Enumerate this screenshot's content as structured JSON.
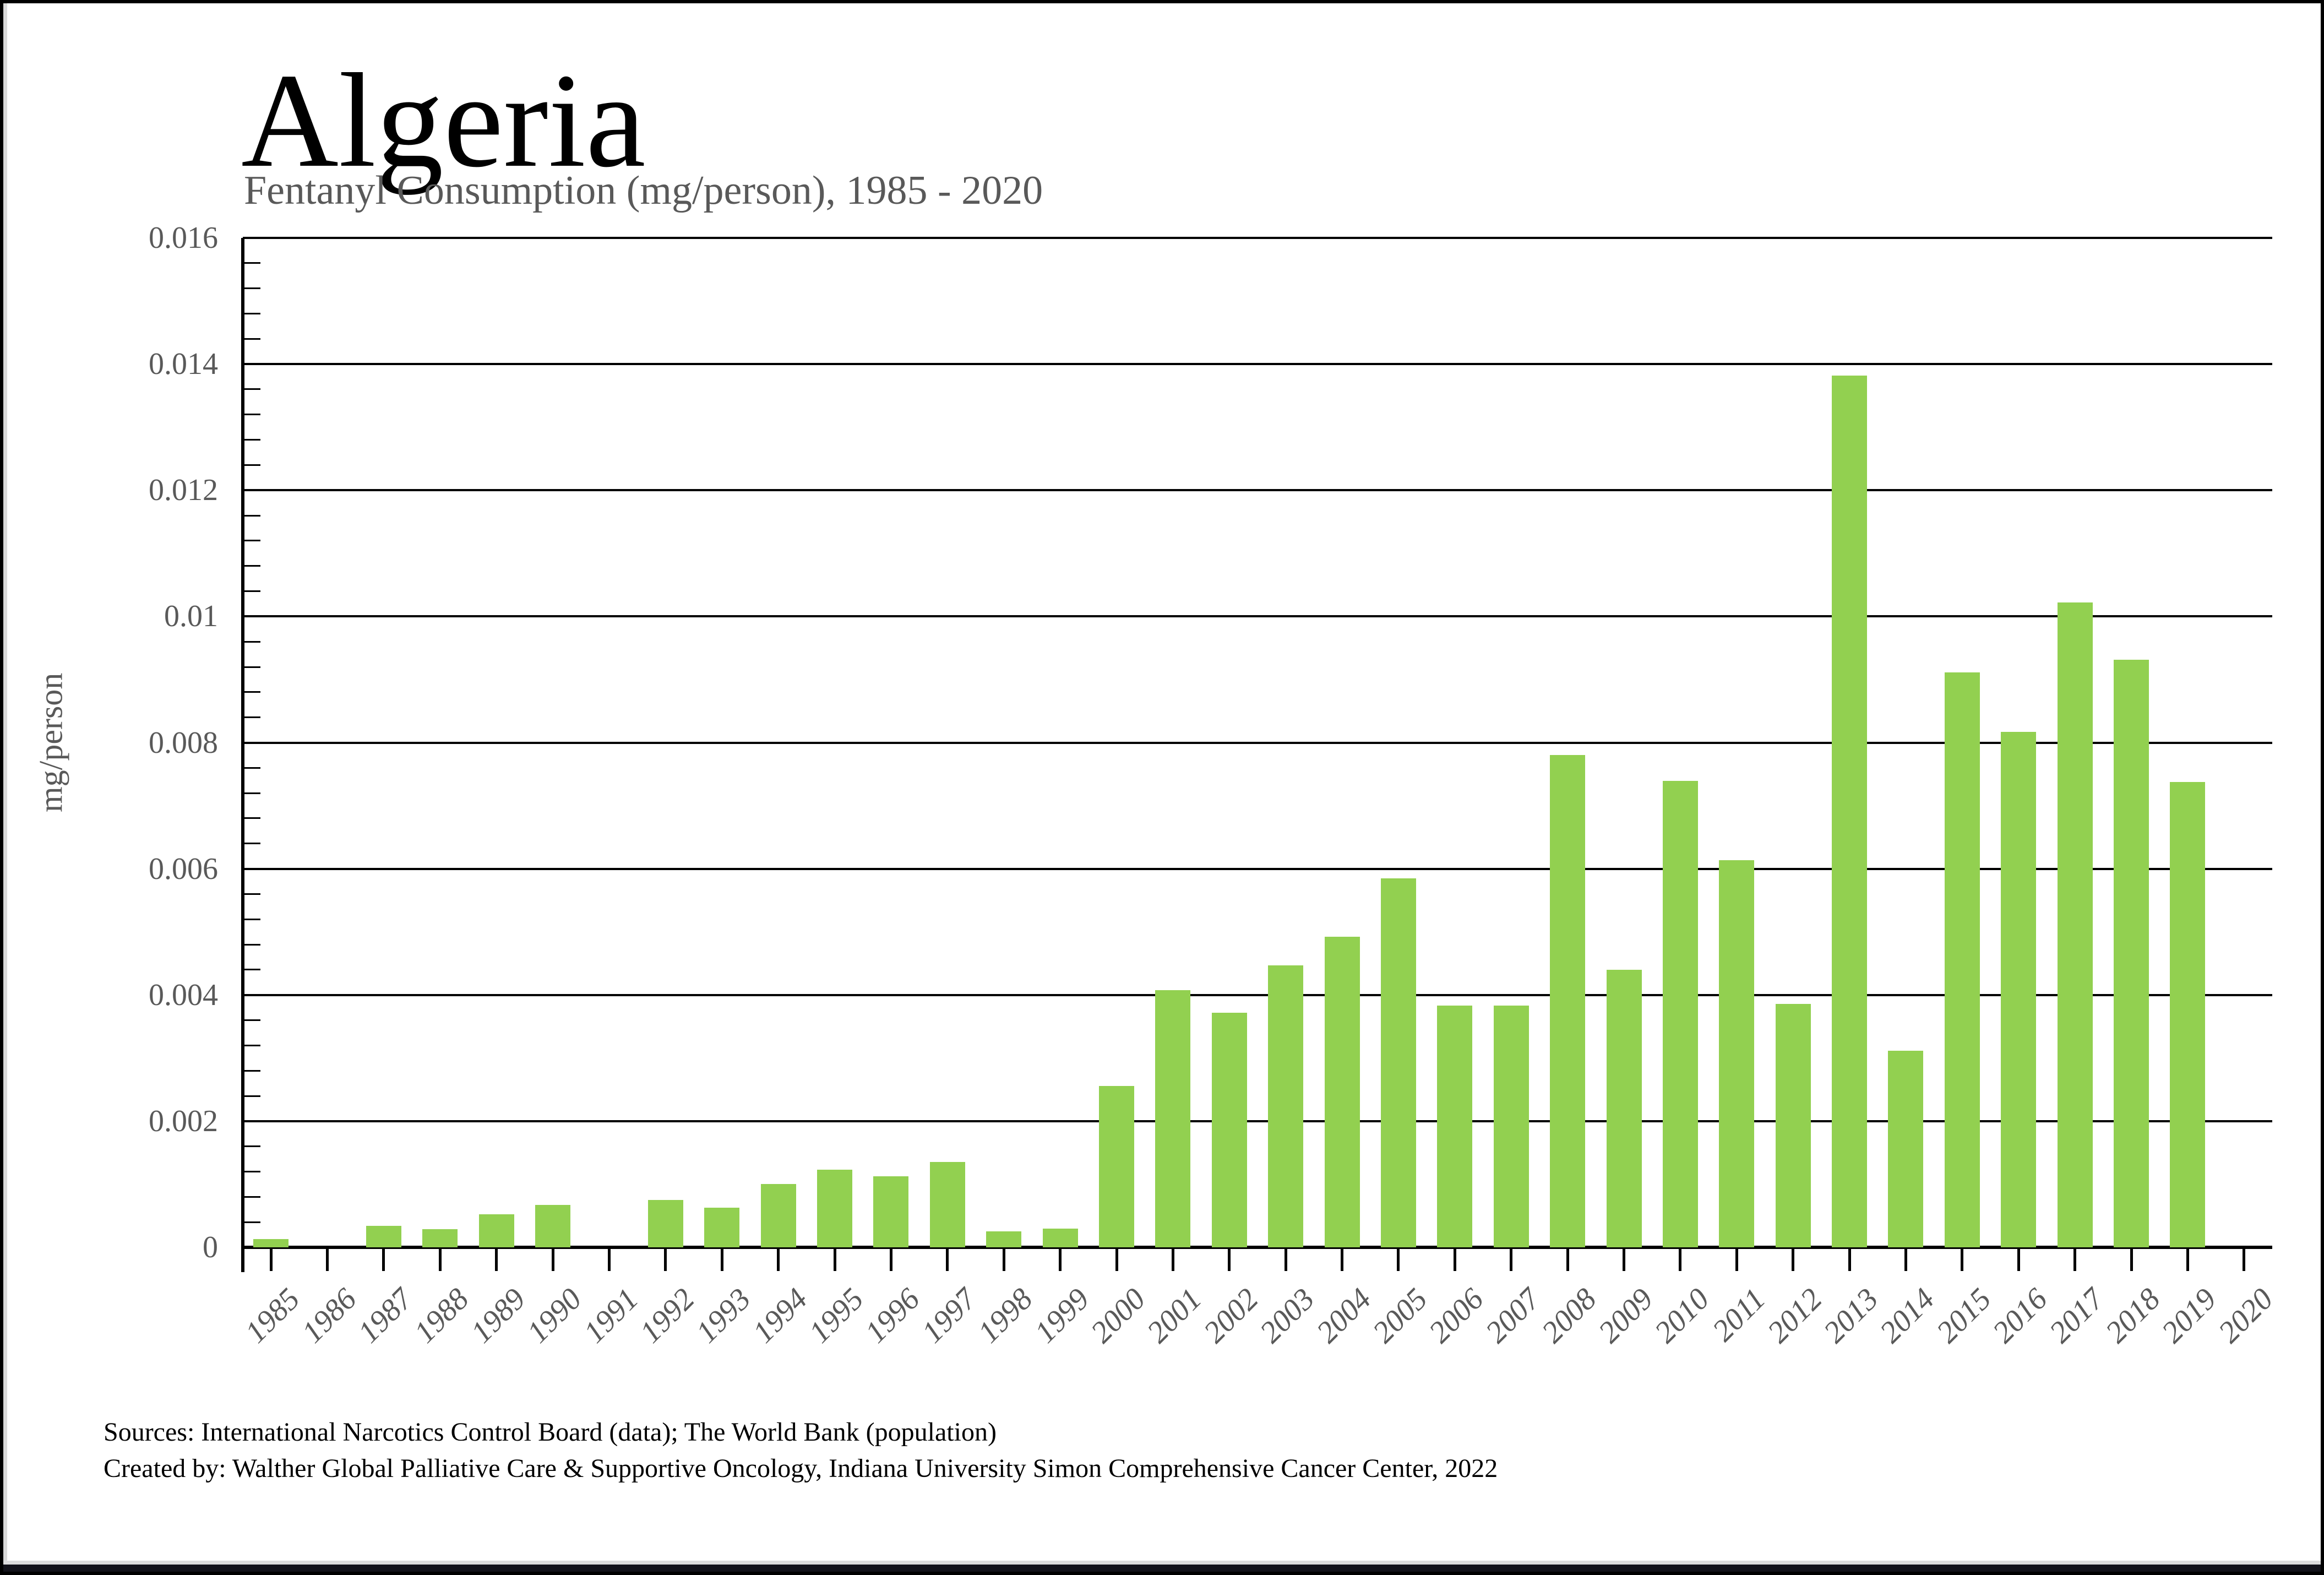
{
  "page": {
    "footer": {
      "line1": "Sources: International Narcotics Control Board (data); The World Bank (population)",
      "line2": "Created by: Walther Global Palliative Care & Supportive Oncology, Indiana University Simon Comprehensive Cancer Center, 2022"
    }
  },
  "colors": {
    "bar": "#92d050",
    "axis_label": "#595959",
    "gridline": "#000000",
    "title": "#000000"
  },
  "chart_data": {
    "type": "bar",
    "title": "Algeria",
    "subtitle": "Fentanyl Consumption (mg/person), 1985 - 2020",
    "xlabel": "",
    "ylabel": "mg/person",
    "ylim": [
      0,
      0.016
    ],
    "ytick_interval": 0.002,
    "ytick_labels": [
      "0",
      "0.002",
      "0.004",
      "0.006",
      "0.008",
      "0.01",
      "0.012",
      "0.014",
      "0.016"
    ],
    "minor_tick_interval": 0.0004,
    "grid": true,
    "legend": false,
    "bar_color": "#92d050",
    "categories": [
      1985,
      1986,
      1987,
      1988,
      1989,
      1990,
      1991,
      1992,
      1993,
      1994,
      1995,
      1996,
      1997,
      1998,
      1999,
      2000,
      2001,
      2002,
      2003,
      2004,
      2005,
      2006,
      2007,
      2008,
      2009,
      2010,
      2011,
      2012,
      2013,
      2014,
      2015,
      2016,
      2017,
      2018,
      2019,
      2020
    ],
    "values": [
      0.00013,
      0,
      0.00034,
      0.00029,
      0.00052,
      0.00067,
      0,
      0.00075,
      0.00063,
      0.001,
      0.00123,
      0.00113,
      0.00135,
      0.00025,
      0.0003,
      0.00256,
      0.00408,
      0.00372,
      0.00447,
      0.00492,
      0.00585,
      0.00383,
      0.00383,
      0.0078,
      0.0044,
      0.00739,
      0.00614,
      0.00386,
      0.01382,
      0.00312,
      0.00911,
      0.00817,
      0.01022,
      0.00931,
      0.00738,
      0
    ]
  }
}
